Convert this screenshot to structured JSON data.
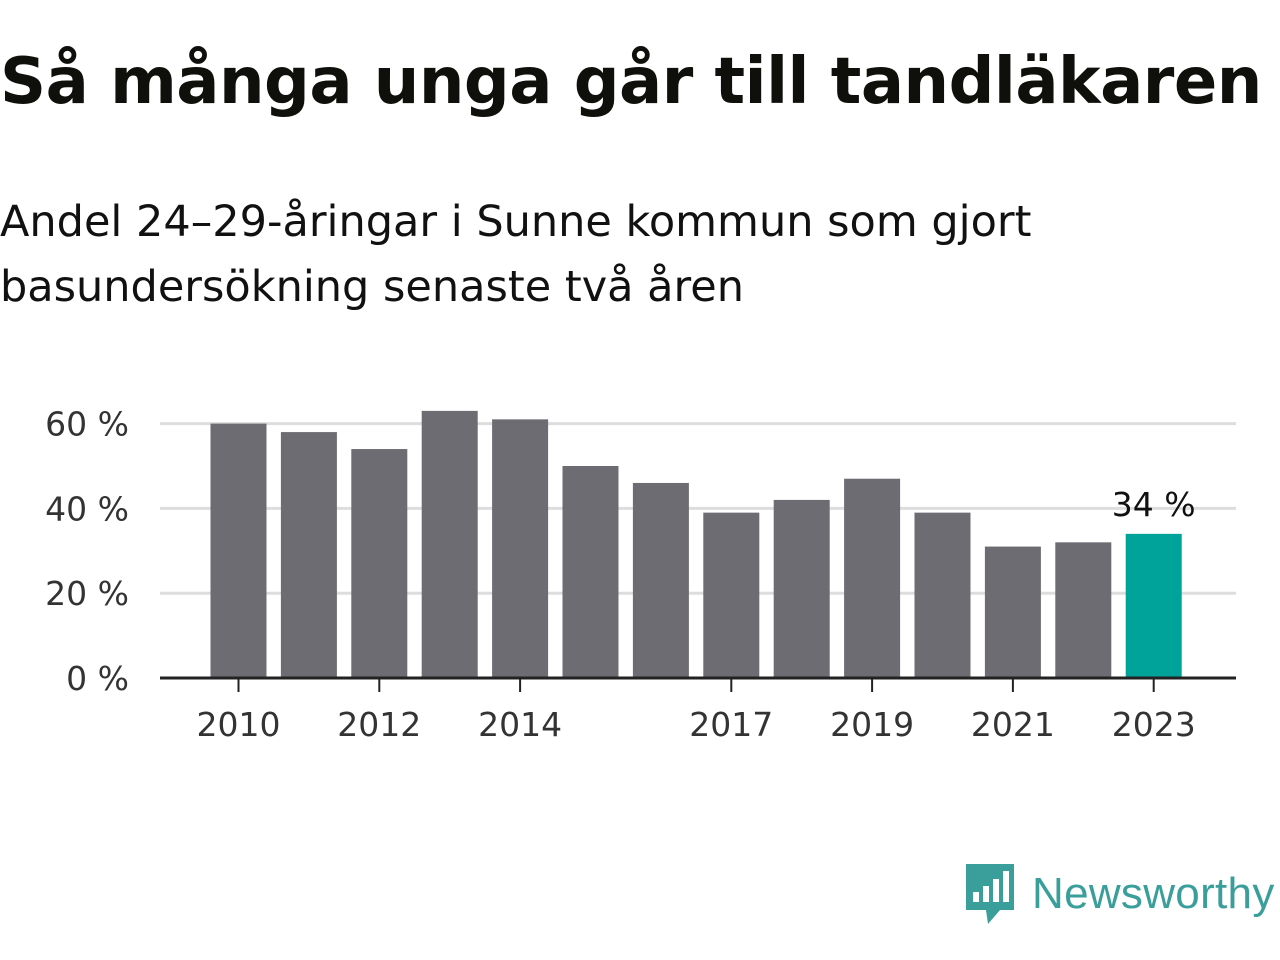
{
  "title": "Så många unga går till tandläkaren",
  "subtitle": "Andel 24–29-åringar i Sunne kommun som gjort basundersökning senaste två åren",
  "brand": {
    "name": "Newsworthy",
    "color": "#3a9e9b",
    "icon": "chart-speech-bubble-icon"
  },
  "chart_data": {
    "type": "bar",
    "categories": [
      "2010",
      "2011",
      "2012",
      "2013",
      "2014",
      "2015",
      "2016",
      "2017",
      "2018",
      "2019",
      "2020",
      "2021",
      "2022",
      "2023"
    ],
    "values": [
      60,
      58,
      54,
      63,
      61,
      50,
      46,
      39,
      42,
      47,
      39,
      31,
      32,
      34
    ],
    "unit": "%",
    "ylim": [
      0,
      65
    ],
    "yticks": [
      0,
      20,
      40,
      60
    ],
    "ytick_labels": [
      "0 %",
      "20 %",
      "40 %",
      "60 %"
    ],
    "xtick_labels": [
      "2010",
      "2012",
      "2014",
      "2017",
      "2019",
      "2021",
      "2023"
    ],
    "highlight": {
      "category": "2023",
      "label": "34 %",
      "color": "#00a39a"
    },
    "bar_color": "#6d6c72",
    "grid": true,
    "title": "",
    "xlabel": "",
    "ylabel": ""
  }
}
